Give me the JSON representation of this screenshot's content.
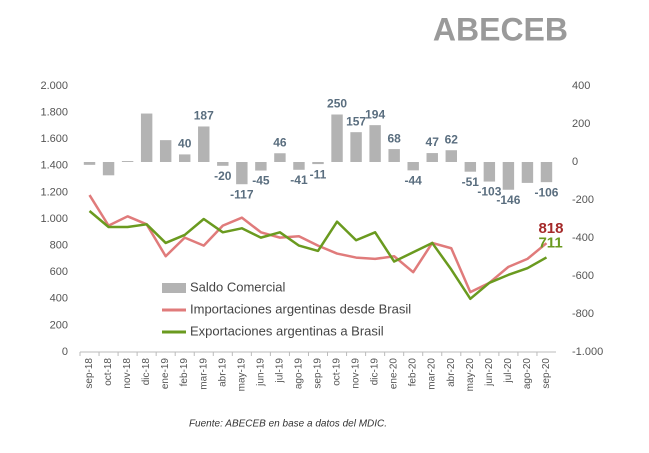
{
  "brand": "ABECEB",
  "source": "Fuente: ABECEB en base a datos del MDIC.",
  "chart_data": {
    "type": "combo",
    "categories": [
      "sep-18",
      "oct-18",
      "nov-18",
      "dic-18",
      "ene-19",
      "feb-19",
      "mar-19",
      "abr-19",
      "may-19",
      "jun-19",
      "jul-19",
      "ago-19",
      "sep-19",
      "oct-19",
      "nov-19",
      "dic-19",
      "ene-20",
      "feb-20",
      "mar-20",
      "abr-20",
      "may-20",
      "jun-20",
      "jul-20",
      "ago-20",
      "sep-20"
    ],
    "ylim": [
      0,
      2000
    ],
    "yticks": [
      0,
      200,
      400,
      600,
      800,
      {
        "value": 1000,
        "label": "1.000"
      },
      {
        "value": 1200,
        "label": "1.200"
      },
      {
        "value": 1400,
        "label": "1.400"
      },
      {
        "value": 1600,
        "label": "1.600"
      },
      {
        "value": 1800,
        "label": "1.800"
      },
      {
        "value": 2000,
        "label": "2.000"
      }
    ],
    "y2lim": [
      -1000,
      400
    ],
    "y2ticks": [
      {
        "value": -1000,
        "label": "-1.000"
      },
      -800,
      -600,
      -400,
      -200,
      0,
      200,
      400
    ],
    "series": [
      {
        "name": "Saldo Comercial",
        "type": "bar",
        "axis": "y2",
        "color": "#b3b3b3",
        "values": [
          -15,
          -70,
          5,
          255,
          115,
          40,
          187,
          -20,
          -117,
          -45,
          46,
          -41,
          -11,
          250,
          157,
          194,
          68,
          -44,
          47,
          62,
          -51,
          -103,
          -146,
          -110,
          -106
        ],
        "value_labels": [
          null,
          null,
          null,
          null,
          null,
          "40",
          "187",
          "-20",
          "-117",
          "-45",
          "46",
          "-41",
          "-11",
          "250",
          "157",
          "194",
          "68",
          "-44",
          "47",
          "62",
          "-51",
          "-103",
          "-146",
          null,
          "-106"
        ]
      },
      {
        "name": "Importaciones argentinas desde Brasil",
        "type": "line",
        "color": "#e07b7b",
        "values": [
          1180,
          950,
          1020,
          960,
          720,
          860,
          800,
          950,
          1010,
          900,
          860,
          870,
          800,
          740,
          710,
          700,
          720,
          600,
          820,
          780,
          450,
          520,
          640,
          700,
          818
        ],
        "value_labels": [
          null,
          null,
          null,
          null,
          null,
          null,
          null,
          null,
          null,
          null,
          null,
          null,
          null,
          null,
          null,
          null,
          null,
          null,
          null,
          null,
          null,
          null,
          null,
          null,
          "818"
        ]
      },
      {
        "name": "Exportaciones argentinas a Brasil",
        "type": "line",
        "color": "#6a9a1f",
        "values": [
          1060,
          940,
          940,
          960,
          820,
          880,
          1000,
          900,
          930,
          860,
          900,
          800,
          760,
          980,
          840,
          900,
          680,
          750,
          820,
          620,
          400,
          520,
          580,
          630,
          711
        ],
        "value_labels": [
          null,
          null,
          null,
          null,
          null,
          null,
          null,
          null,
          null,
          null,
          null,
          null,
          null,
          null,
          null,
          null,
          null,
          null,
          null,
          null,
          null,
          null,
          null,
          null,
          "711"
        ]
      }
    ]
  }
}
